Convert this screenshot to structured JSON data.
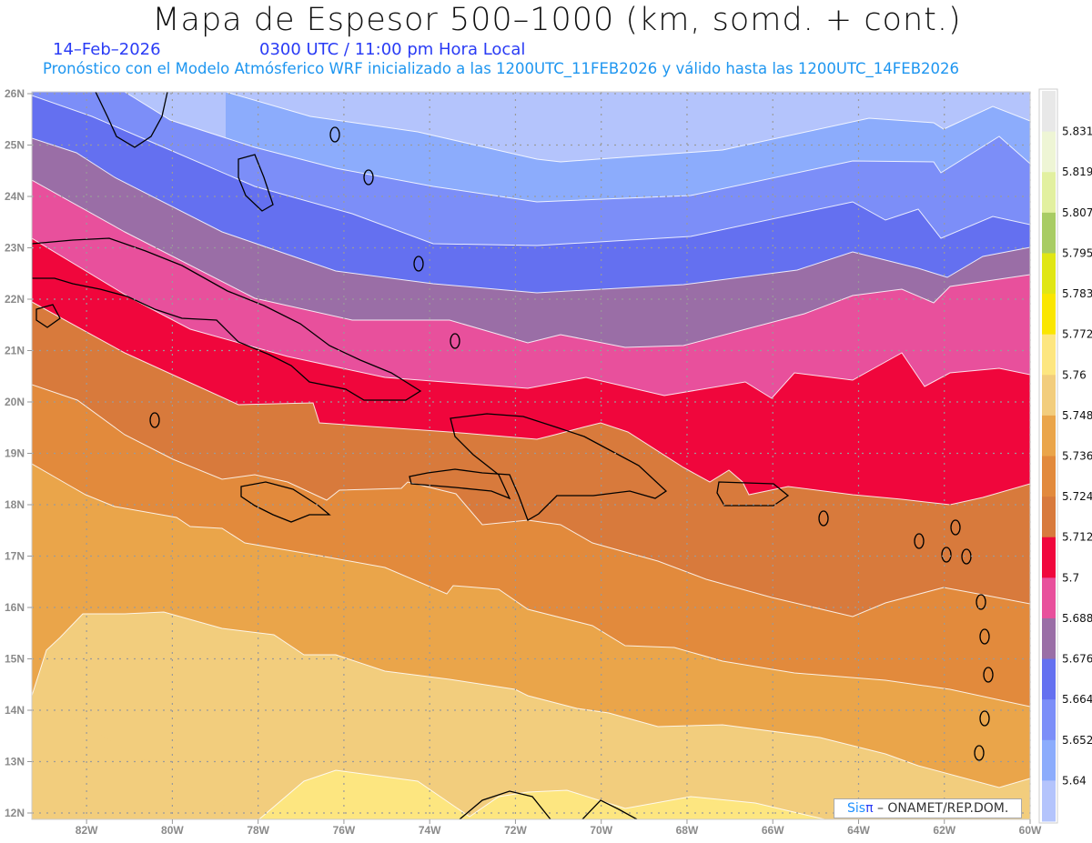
{
  "header": {
    "title": "Mapa de Espesor 500–1000 (km, somd. + cont.)",
    "date": "14–Feb–2026",
    "time": "0300 UTC / 11:00 pm Hora Local",
    "subtitle": "Pronóstico con el Modelo Atmósferico WRF inicializado a las 1200UTC_11FEB2026 y válido hasta las  1200UTC_14FEB2026"
  },
  "map": {
    "lat_labels": [
      "12N",
      "13N",
      "14N",
      "15N",
      "16N",
      "17N",
      "18N",
      "19N",
      "20N",
      "21N",
      "22N",
      "23N",
      "24N",
      "25N",
      "26N"
    ],
    "lon_labels": [
      "82W",
      "80W",
      "78W",
      "76W",
      "74W",
      "72W",
      "70W",
      "68W",
      "66W",
      "64W",
      "62W",
      "60W"
    ],
    "lat_range": [
      12,
      26
    ],
    "lon_range": [
      -83.3,
      -60
    ]
  },
  "colorbar": {
    "colors": [
      "#e8e8e8",
      "#eef5d5",
      "#e2f0a0",
      "#a8cc64",
      "#e0e614",
      "#fae600",
      "#fde680",
      "#f2cd7d",
      "#eaa54a",
      "#e28a3c",
      "#d87a3c",
      "#f0063c",
      "#e8509c",
      "#9a6ea6",
      "#6470f0",
      "#7c8ef8",
      "#8cacfc",
      "#b4c4fc"
    ],
    "labels": [
      "5.831",
      "5.819",
      "5.807",
      "5.795",
      "5.783",
      "5.772",
      "5.76",
      "5.748",
      "5.736",
      "5.724",
      "5.712",
      "5.7",
      "5.688",
      "5.676",
      "5.664",
      "5.652",
      "5.64"
    ]
  },
  "credit": {
    "sis": "Sis",
    "pi": "π",
    "org": " –  ONAMET/REP.DOM."
  }
}
